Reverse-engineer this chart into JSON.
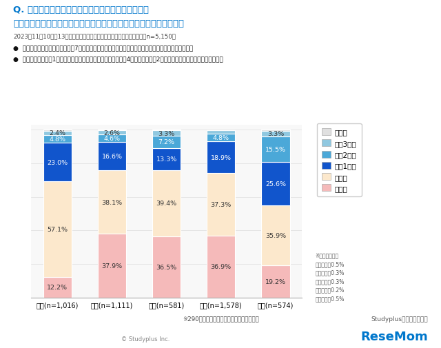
{
  "title_line1": "Q. あなたがもっとも苦手・嫌いな教科は何ですか？",
  "title_line2": "　その教科が苦手・嫌いになったのはいつからですか？（単一回答）",
  "subtitle": "2023年11月10日～13日　文理選択と学部・学問の系統についての調査（n=5,150）",
  "bullet1": "英語・国語・社会・数学は、約7割が小中学生時点で苦手を自覚。英語は特に中学生で自覚する傾向。",
  "bullet2": "英語・理系は高校1年生で苦手を自覚する割合も高く、理科は4割以上・数学は2割以上が高校生になってから苦手に。",
  "categories": [
    "英語(n=1,016)",
    "国語(n=1,111)",
    "社会(n=581)",
    "数学(n=1,578)",
    "理科(n=574)"
  ],
  "legend_labels": [
    "その他",
    "高校3年生",
    "高校2年生",
    "高校1年生",
    "中学生",
    "小学生"
  ],
  "colors": {
    "その他": "#e0e0e0",
    "高校3年生": "#90c8e0",
    "高校2年生": "#4ba8d8",
    "高校1年生": "#1155cc",
    "中学生": "#fce8cc",
    "小学生": "#f5baba"
  },
  "stack_order": [
    "小学生",
    "中学生",
    "高校1年生",
    "高校2年生",
    "高校3年生",
    "その他"
  ],
  "data": {
    "小学生": [
      12.2,
      37.9,
      36.5,
      36.9,
      19.2
    ],
    "中学生": [
      57.1,
      38.1,
      39.4,
      37.3,
      35.9
    ],
    "高校1年生": [
      23.0,
      16.6,
      13.3,
      18.9,
      25.6
    ],
    "高校2年生": [
      4.8,
      4.6,
      7.2,
      4.8,
      15.5
    ],
    "高校3年生": [
      2.4,
      2.6,
      3.3,
      1.8,
      3.3
    ],
    "その他": [
      0.5,
      0.3,
      0.3,
      0.2,
      0.5
    ]
  },
  "label_colors": {
    "小学生": "#333333",
    "中学生": "#333333",
    "高校1年生": "#ffffff",
    "高校2年生": "#ffffff",
    "高校3年生": "#333333",
    "その他": "#333333"
  },
  "footnote1": "※290名は「苦手科目なし」や他科目を回答",
  "footnote2": "※その他の割合\n英語・・・0.5%\n国語・・・0.3%\n社会・・・0.3%\n数学・・・0.2%\n理科・・・0.5%",
  "copyright": "© Studyplus Inc.",
  "brand1": "Studyplusトレンド研究所",
  "brand2": "ReseMom"
}
